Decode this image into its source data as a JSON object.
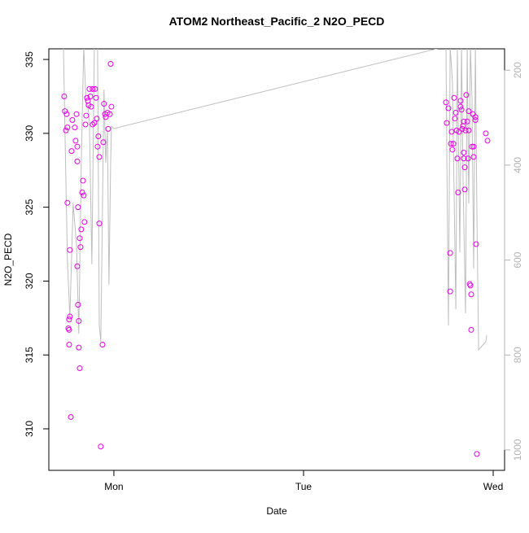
{
  "chart_data": {
    "type": "scatter",
    "title": "ATOM2 Northeast_Pacific_2 N2O_PECD",
    "x_label": "Date",
    "y_label": "N2O_PECD",
    "xlim": [
      -0.343,
      2.06
    ],
    "xticks": [
      {
        "value": 0,
        "label": "Mon"
      },
      {
        "value": 1,
        "label": "Tue"
      },
      {
        "value": 2,
        "label": "Wed"
      }
    ],
    "ylim": [
      307.19,
      335.72
    ],
    "yticks": [
      310,
      315,
      320,
      325,
      330,
      335
    ],
    "y2lim": [
      1043,
      155
    ],
    "y2ticks": [
      200,
      400,
      600,
      800,
      1000
    ],
    "y2_color": "#b3b3b3",
    "series": [
      {
        "type": "scatter",
        "color": "#e600e6",
        "x": [
          -0.262,
          -0.258,
          -0.249,
          -0.253,
          -0.245,
          -0.245,
          -0.232,
          -0.236,
          -0.232,
          -0.24,
          -0.236,
          -0.236,
          -0.223,
          -0.219,
          -0.206,
          -0.202,
          -0.197,
          -0.193,
          -0.193,
          -0.189,
          -0.193,
          -0.189,
          -0.185,
          -0.185,
          -0.18,
          -0.18,
          -0.176,
          -0.172,
          -0.167,
          -0.159,
          -0.163,
          -0.155,
          -0.15,
          -0.146,
          -0.142,
          -0.137,
          -0.133,
          -0.129,
          -0.124,
          -0.12,
          -0.112,
          -0.112,
          -0.103,
          -0.099,
          -0.094,
          -0.09,
          -0.086,
          -0.082,
          -0.077,
          -0.077,
          -0.069,
          -0.06,
          -0.056,
          -0.052,
          -0.047,
          -0.043,
          -0.034,
          -0.03,
          -0.021,
          -0.013,
          -0.017,
          -0.227,
          1.751,
          1.755,
          1.764,
          1.773,
          1.773,
          1.777,
          1.781,
          1.785,
          1.79,
          1.794,
          1.798,
          1.803,
          1.807,
          1.811,
          1.815,
          1.82,
          1.828,
          1.828,
          1.833,
          1.837,
          1.841,
          1.845,
          1.845,
          1.845,
          1.85,
          1.85,
          1.854,
          1.858,
          1.863,
          1.867,
          1.871,
          1.871,
          1.876,
          1.88,
          1.884,
          1.884,
          1.888,
          1.893,
          1.897,
          1.897,
          1.906,
          1.91,
          1.914,
          1.961,
          1.97,
          1.906
        ],
        "values": [
          332.5,
          331.5,
          331.3,
          330.2,
          330.4,
          325.3,
          322.1,
          317.4,
          317.6,
          316.8,
          316.7,
          315.7,
          328.8,
          330.9,
          330.4,
          329.5,
          331.3,
          329.1,
          328.1,
          325.0,
          321.0,
          318.4,
          317.3,
          315.5,
          314.1,
          322.9,
          322.3,
          323.5,
          326.0,
          325.8,
          326.8,
          324.0,
          330.6,
          331.2,
          332.4,
          332.2,
          331.9,
          333.0,
          332.5,
          331.8,
          333.0,
          330.6,
          330.7,
          333.0,
          332.4,
          331.0,
          329.1,
          329.8,
          328.4,
          323.9,
          308.8,
          315.7,
          329.4,
          332.0,
          331.3,
          331.1,
          331.4,
          330.3,
          331.3,
          331.8,
          334.7,
          310.8,
          332.1,
          330.7,
          331.7,
          321.9,
          319.3,
          329.3,
          330.1,
          328.9,
          329.3,
          332.4,
          331.0,
          331.4,
          330.2,
          328.3,
          326.0,
          330.1,
          332.2,
          331.8,
          331.6,
          330.3,
          330.5,
          330.8,
          328.7,
          328.3,
          327.7,
          326.2,
          330.2,
          332.6,
          330.8,
          328.3,
          330.2,
          331.5,
          319.8,
          319.7,
          319.1,
          316.7,
          329.1,
          331.3,
          328.4,
          329.1,
          331.1,
          322.5,
          308.3,
          330.0,
          329.5,
          330.9
        ]
      },
      {
        "type": "line",
        "axis": "y2",
        "color": "#bebebe",
        "x": [
          -0.266,
          -0.258,
          -0.245,
          -0.232,
          -0.215,
          -0.197,
          -0.185,
          -0.172,
          -0.159,
          -0.146,
          -0.137,
          -0.129,
          -0.116,
          -0.103,
          -0.086,
          -0.077,
          -0.069,
          -0.06,
          -0.052,
          -0.043,
          -0.034,
          -0.026,
          -0.017,
          -0.013,
          0,
          1.751,
          1.755,
          1.764,
          1.773,
          1.785,
          1.794,
          1.803,
          1.811,
          1.824,
          1.833,
          1.841,
          1.854,
          1.863,
          1.871,
          1.88,
          1.888,
          1.897,
          1.906,
          1.914,
          1.923,
          1.961,
          1.966
        ],
        "values": [
          150,
          327,
          601,
          721,
          481,
          567,
          755,
          395,
          150,
          275,
          275,
          310,
          609,
          150,
          150,
          738,
          772,
          481,
          241,
          395,
          327,
          652,
          395,
          318,
          323,
          150,
          361,
          738,
          150,
          224,
          464,
          704,
          150,
          584,
          150,
          430,
          712,
          150,
          481,
          150,
          258,
          618,
          150,
          498,
          789,
          772,
          758
        ]
      }
    ]
  }
}
